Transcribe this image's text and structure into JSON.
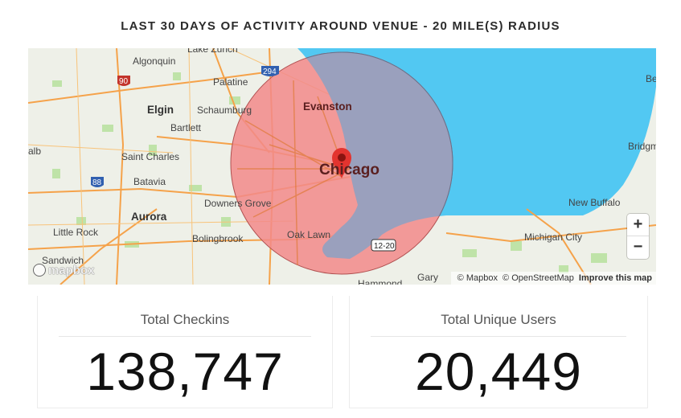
{
  "header": {
    "title": "LAST 30 DAYS OF ACTIVITY AROUND VENUE - 20 MILE(S) RADIUS"
  },
  "map": {
    "colors": {
      "water": "#52c8f2",
      "land": "#eef0e8",
      "radius_fill": "#f28a8a",
      "radius_over_water": "#9aa0bd",
      "marker": "#e3342f",
      "road": "#f5a24a"
    },
    "labels": {
      "lake_zurich": "Lake Zurich",
      "algonquin": "Algonquin",
      "palatine": "Palatine",
      "elgin": "Elgin",
      "schaumburg": "Schaumburg",
      "bartlett": "Bartlett",
      "evanston": "Evanston",
      "st_charles": "Saint Charles",
      "alb": "alb",
      "batavia": "Batavia",
      "chicago": "Chicago",
      "downers_grove": "Downers Grove",
      "aurora": "Aurora",
      "little_rock": "Little Rock",
      "bolingbrook": "Bolingbrook",
      "oak_lawn": "Oak Lawn",
      "sandwich": "Sandwich",
      "hammond": "Hammond",
      "gary": "Gary",
      "be": "Be",
      "bridgm": "Bridgm",
      "new_buffalo": "New Buffalo",
      "michigan_city": "Michigan City"
    },
    "highways": {
      "i90": "90",
      "i294": "294",
      "i88": "88",
      "i12_20": "12-20"
    },
    "icons": {
      "marker": "map-pin-icon",
      "logo": "mapbox-logo"
    },
    "controls": {
      "zoom_in": "+",
      "zoom_out": "−"
    },
    "logo_text": "mapbox",
    "attribution": {
      "mapbox": "© Mapbox",
      "osm": "© OpenStreetMap",
      "improve": "Improve this map"
    }
  },
  "stats": [
    {
      "label": "Total Checkins",
      "value": "138,747"
    },
    {
      "label": "Total Unique Users",
      "value": "20,449"
    }
  ]
}
